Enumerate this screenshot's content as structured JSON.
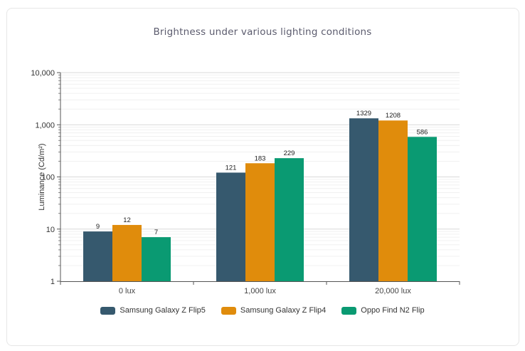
{
  "chart_data": {
    "type": "bar",
    "title": "Brightness under various lighting conditions",
    "xlabel": "",
    "ylabel": "Luminance (Cd/m²)",
    "yscale": "log",
    "ylim": [
      1,
      10000
    ],
    "yticks": [
      1,
      10,
      100,
      1000,
      10000
    ],
    "ytick_labels": [
      "1",
      "10",
      "100",
      "1,000",
      "10,000"
    ],
    "grid": true,
    "legend_position": "bottom",
    "categories": [
      "0 lux",
      "1,000 lux",
      "20,000 lux"
    ],
    "series": [
      {
        "name": "Samsung Galaxy Z Flip5",
        "color": "#36596e",
        "values": [
          9,
          121,
          1329
        ]
      },
      {
        "name": "Samsung Galaxy Z Flip4",
        "color": "#e08c0c",
        "values": [
          12,
          183,
          1208
        ]
      },
      {
        "name": "Oppo Find N2 Flip",
        "color": "#0a9a72",
        "values": [
          7,
          229,
          586
        ]
      }
    ]
  }
}
